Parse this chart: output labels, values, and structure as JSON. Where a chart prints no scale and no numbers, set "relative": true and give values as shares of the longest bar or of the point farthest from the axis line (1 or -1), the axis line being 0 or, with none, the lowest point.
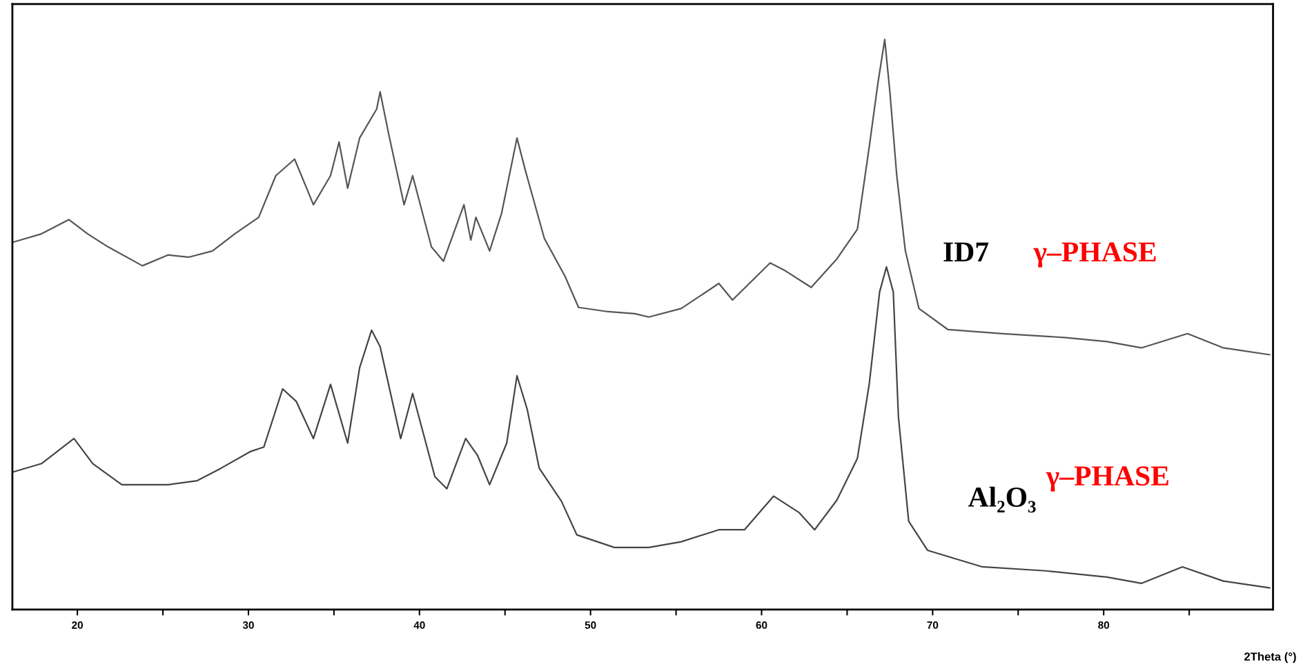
{
  "chart_data": {
    "type": "line",
    "relative": true,
    "xlabel": "2Theta (°)",
    "xlim": [
      16.2,
      89.9
    ],
    "xticks": [
      20,
      {
        "value": 25,
        "label": null
      },
      30,
      {
        "value": 35,
        "label": null
      },
      40,
      {
        "value": 45,
        "label": null
      },
      50,
      {
        "value": 55,
        "label": null
      },
      60,
      {
        "value": 65,
        "label": null
      },
      70,
      {
        "value": 75,
        "label": null
      },
      80,
      {
        "value": 85,
        "label": null
      }
    ],
    "grid": false,
    "legend": false,
    "marker": "none",
    "line_style": "solid",
    "annotations": [
      "γ–PHASE",
      "γ–PHASE"
    ],
    "series": [
      {
        "name": "ID7",
        "color": "#555555",
        "x": [
          16.2,
          17.9,
          19.5,
          20.6,
          21.8,
          23.8,
          25.3,
          26.5,
          27.9,
          29.2,
          30.6,
          31.6,
          32.7,
          33.8,
          34.8,
          35.3,
          35.8,
          36.5,
          37.5,
          37.7,
          38.2,
          39.1,
          39.6,
          40.7,
          41.4,
          42.6,
          43.0,
          43.3,
          44.1,
          44.8,
          45.7,
          46.2,
          47.3,
          48.5,
          49.3,
          50.9,
          52.6,
          53.4,
          55.3,
          57.5,
          58.3,
          60.5,
          61.4,
          62.9,
          64.4,
          65.6,
          66.3,
          66.8,
          67.2,
          67.5,
          67.9,
          68.4,
          69.2,
          70.9,
          74.1,
          77.8,
          80.2,
          82.2,
          84.9,
          87.0,
          89.7
        ],
        "values": [
          0.644,
          0.659,
          0.684,
          0.659,
          0.636,
          0.603,
          0.622,
          0.618,
          0.629,
          0.659,
          0.688,
          0.761,
          0.79,
          0.71,
          0.761,
          0.82,
          0.739,
          0.827,
          0.878,
          0.908,
          0.834,
          0.71,
          0.761,
          0.636,
          0.611,
          0.71,
          0.648,
          0.688,
          0.629,
          0.695,
          0.827,
          0.769,
          0.651,
          0.585,
          0.53,
          0.523,
          0.519,
          0.513,
          0.528,
          0.572,
          0.543,
          0.608,
          0.594,
          0.565,
          0.615,
          0.667,
          0.813,
          0.923,
          1.0,
          0.908,
          0.762,
          0.63,
          0.528,
          0.491,
          0.484,
          0.477,
          0.47,
          0.459,
          0.484,
          0.459,
          0.447
        ]
      },
      {
        "name": "Al₂O₃",
        "color": "#444444",
        "x": [
          16.2,
          17.9,
          19.8,
          20.9,
          22.6,
          25.3,
          27.0,
          28.4,
          30.1,
          30.9,
          32.0,
          32.8,
          33.8,
          34.8,
          35.8,
          36.5,
          37.2,
          37.7,
          38.9,
          39.6,
          40.9,
          41.6,
          42.7,
          43.4,
          44.1,
          45.1,
          45.7,
          46.3,
          47.0,
          48.3,
          49.2,
          51.4,
          53.4,
          55.3,
          57.5,
          59.0,
          60.7,
          62.2,
          63.1,
          64.4,
          65.6,
          66.3,
          66.9,
          67.3,
          67.7,
          68.0,
          68.6,
          69.7,
          72.9,
          76.6,
          80.2,
          82.2,
          84.6,
          87.0,
          89.7
        ],
        "values": [
          0.241,
          0.256,
          0.3,
          0.256,
          0.219,
          0.219,
          0.226,
          0.248,
          0.277,
          0.285,
          0.387,
          0.365,
          0.3,
          0.395,
          0.292,
          0.424,
          0.49,
          0.461,
          0.3,
          0.379,
          0.233,
          0.212,
          0.3,
          0.27,
          0.219,
          0.292,
          0.41,
          0.351,
          0.248,
          0.19,
          0.131,
          0.109,
          0.109,
          0.119,
          0.14,
          0.14,
          0.199,
          0.17,
          0.14,
          0.192,
          0.265,
          0.397,
          0.557,
          0.601,
          0.557,
          0.338,
          0.155,
          0.104,
          0.075,
          0.068,
          0.057,
          0.046,
          0.075,
          0.05,
          0.038
        ]
      }
    ]
  }
}
